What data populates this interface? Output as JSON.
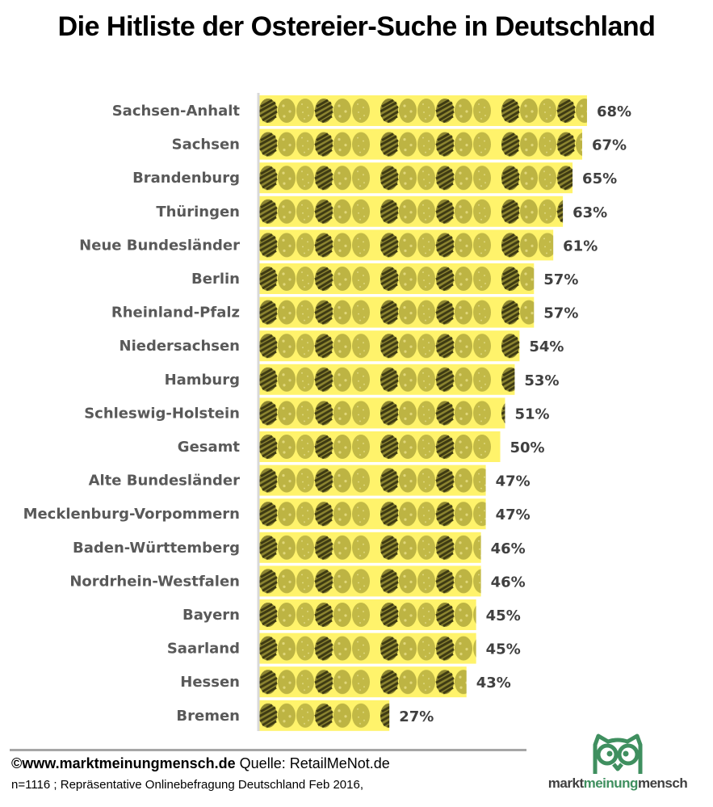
{
  "chart_data": {
    "type": "bar",
    "orientation": "horizontal",
    "title": "Die Hitliste der Ostereier-Suche in Deutschland",
    "xlabel": "",
    "ylabel": "",
    "value_suffix": "%",
    "xlim": [
      0,
      100
    ],
    "grid": false,
    "legend": "none",
    "bar_fill": "easter-egg-pattern",
    "categories": [
      "Sachsen-Anhalt",
      "Sachsen",
      "Brandenburg",
      "Thüringen",
      "Neue Bundesländer",
      "Berlin",
      "Rheinland-Pfalz",
      "Niedersachsen",
      "Hamburg",
      "Schleswig-Holstein",
      "Gesamt",
      "Alte Bundesländer",
      "Mecklenburg-Vorpommern",
      "Baden-Württemberg",
      "Nordrhein-Westfalen",
      "Bayern",
      "Saarland",
      "Hessen",
      "Bremen"
    ],
    "values": [
      68,
      67,
      65,
      63,
      61,
      57,
      57,
      54,
      53,
      51,
      50,
      47,
      47,
      46,
      46,
      45,
      45,
      43,
      27
    ],
    "colors": {
      "bar_background": "#fff36b",
      "egg_light": "#c8bf4a",
      "egg_mid": "#b5ab3c",
      "egg_stripe_dark": "#4f4a1a",
      "axis": "#d9d9d9",
      "category_text": "#595959",
      "value_text": "#404040"
    }
  },
  "footer": {
    "site": "©www.marktmeinungmensch.de",
    "source": "Quelle: RetailMeNot.de",
    "note": "n=1116 ; Repräsentative  Onlinebefragung Deutschland Feb 2016,"
  },
  "logo": {
    "icon": "owl-icon",
    "part1": "markt",
    "part2": "meinung",
    "part3": "mensch",
    "color": "#3f8f5f"
  }
}
